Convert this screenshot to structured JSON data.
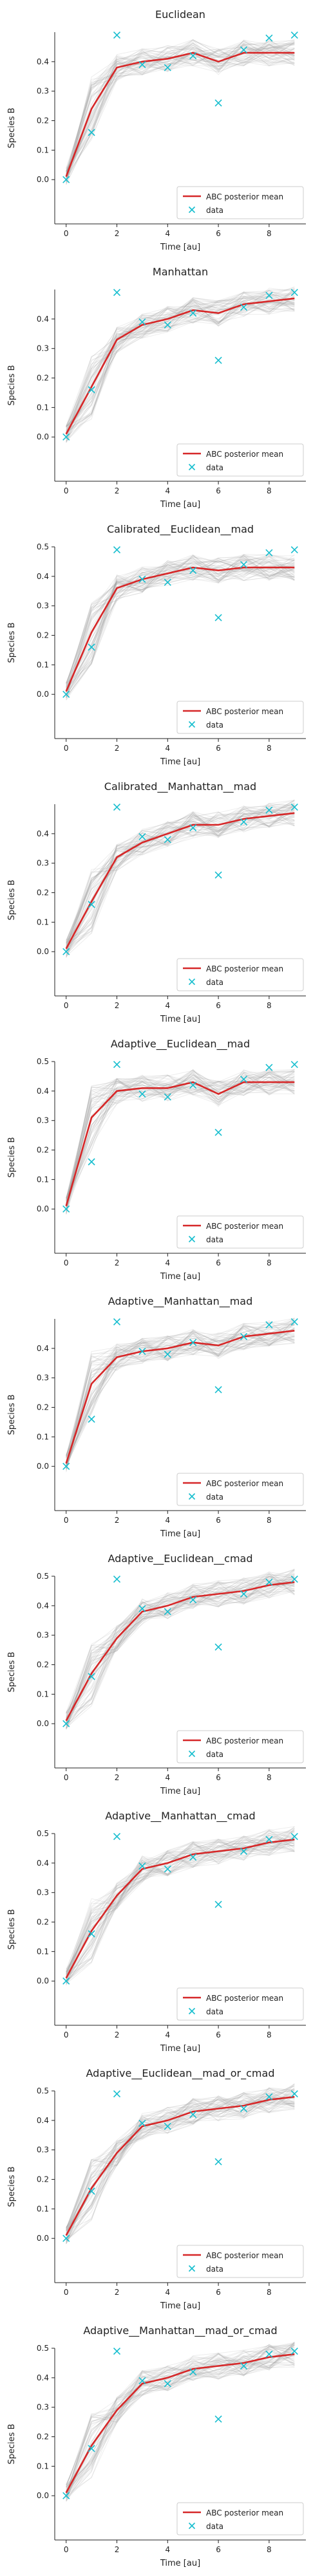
{
  "chart_data": [
    {
      "type": "line",
      "title": "Euclidean",
      "xlabel": "Time [au]",
      "ylabel": "Species B",
      "xlim": [
        0,
        9
      ],
      "ylim": [
        -0.15,
        0.5
      ],
      "xticks": [
        "0",
        "2",
        "4",
        "6",
        "8"
      ],
      "yticks": [
        "0.0",
        "0.1",
        "0.2",
        "0.3",
        "0.4"
      ],
      "legend": [
        "ABC posterior mean",
        "data"
      ],
      "legend_position": "bottom-right",
      "series": [
        {
          "name": "ABC posterior mean",
          "x": [
            0,
            1,
            2,
            3,
            4,
            5,
            6,
            7,
            8,
            9
          ],
          "values": [
            0.01,
            0.24,
            0.38,
            0.4,
            0.41,
            0.43,
            0.4,
            0.43,
            0.43,
            0.43
          ]
        },
        {
          "name": "data",
          "x": [
            0,
            1,
            2,
            3,
            4,
            5,
            6,
            7,
            8,
            9
          ],
          "values": [
            0.0,
            0.16,
            0.49,
            0.39,
            0.38,
            0.42,
            0.26,
            0.44,
            0.48,
            0.49
          ]
        }
      ]
    },
    {
      "type": "line",
      "title": "Manhattan",
      "xlabel": "Time [au]",
      "ylabel": "Species B",
      "xlim": [
        0,
        9
      ],
      "ylim": [
        -0.15,
        0.5
      ],
      "xticks": [
        "0",
        "2",
        "4",
        "6",
        "8"
      ],
      "yticks": [
        "0.0",
        "0.1",
        "0.2",
        "0.3",
        "0.4"
      ],
      "legend": [
        "ABC posterior mean",
        "data"
      ],
      "legend_position": "bottom-right",
      "series": [
        {
          "name": "ABC posterior mean",
          "x": [
            0,
            1,
            2,
            3,
            4,
            5,
            6,
            7,
            8,
            9
          ],
          "values": [
            0.01,
            0.17,
            0.33,
            0.38,
            0.4,
            0.43,
            0.42,
            0.45,
            0.46,
            0.47
          ]
        },
        {
          "name": "data",
          "x": [
            0,
            1,
            2,
            3,
            4,
            5,
            6,
            7,
            8,
            9
          ],
          "values": [
            0.0,
            0.16,
            0.49,
            0.39,
            0.38,
            0.42,
            0.26,
            0.44,
            0.48,
            0.49
          ]
        }
      ]
    },
    {
      "type": "line",
      "title": "Calibrated__Euclidean__mad",
      "xlabel": "Time [au]",
      "ylabel": "Species B",
      "xlim": [
        0,
        9
      ],
      "ylim": [
        -0.15,
        0.5
      ],
      "xticks": [
        "0",
        "2",
        "4",
        "6",
        "8"
      ],
      "yticks": [
        "0.0",
        "0.1",
        "0.2",
        "0.3",
        "0.4",
        "0.5"
      ],
      "legend": [
        "ABC posterior mean",
        "data"
      ],
      "legend_position": "bottom-right",
      "series": [
        {
          "name": "ABC posterior mean",
          "x": [
            0,
            1,
            2,
            3,
            4,
            5,
            6,
            7,
            8,
            9
          ],
          "values": [
            0.01,
            0.21,
            0.36,
            0.39,
            0.41,
            0.43,
            0.42,
            0.43,
            0.43,
            0.43
          ]
        },
        {
          "name": "data",
          "x": [
            0,
            1,
            2,
            3,
            4,
            5,
            6,
            7,
            8,
            9
          ],
          "values": [
            0.0,
            0.16,
            0.49,
            0.39,
            0.38,
            0.42,
            0.26,
            0.44,
            0.48,
            0.49
          ]
        }
      ]
    },
    {
      "type": "line",
      "title": "Calibrated__Manhattan__mad",
      "xlabel": "Time [au]",
      "ylabel": "Species B",
      "xlim": [
        0,
        9
      ],
      "ylim": [
        -0.15,
        0.5
      ],
      "xticks": [
        "0",
        "2",
        "4",
        "6",
        "8"
      ],
      "yticks": [
        "0.0",
        "0.1",
        "0.2",
        "0.3",
        "0.4"
      ],
      "legend": [
        "ABC posterior mean",
        "data"
      ],
      "legend_position": "bottom-right",
      "series": [
        {
          "name": "ABC posterior mean",
          "x": [
            0,
            1,
            2,
            3,
            4,
            5,
            6,
            7,
            8,
            9
          ],
          "values": [
            0.01,
            0.17,
            0.32,
            0.37,
            0.4,
            0.43,
            0.43,
            0.45,
            0.46,
            0.47
          ]
        },
        {
          "name": "data",
          "x": [
            0,
            1,
            2,
            3,
            4,
            5,
            6,
            7,
            8,
            9
          ],
          "values": [
            0.0,
            0.16,
            0.49,
            0.39,
            0.38,
            0.42,
            0.26,
            0.44,
            0.48,
            0.49
          ]
        }
      ]
    },
    {
      "type": "line",
      "title": "Adaptive__Euclidean__mad",
      "xlabel": "Time [au]",
      "ylabel": "Species B",
      "xlim": [
        0,
        9
      ],
      "ylim": [
        -0.15,
        0.5
      ],
      "xticks": [
        "0",
        "2",
        "4",
        "6",
        "8"
      ],
      "yticks": [
        "0.0",
        "0.1",
        "0.2",
        "0.3",
        "0.4",
        "0.5"
      ],
      "legend": [
        "ABC posterior mean",
        "data"
      ],
      "legend_position": "bottom-right",
      "series": [
        {
          "name": "ABC posterior mean",
          "x": [
            0,
            1,
            2,
            3,
            4,
            5,
            6,
            7,
            8,
            9
          ],
          "values": [
            0.01,
            0.31,
            0.4,
            0.41,
            0.41,
            0.43,
            0.39,
            0.43,
            0.43,
            0.43
          ]
        },
        {
          "name": "data",
          "x": [
            0,
            1,
            2,
            3,
            4,
            5,
            6,
            7,
            8,
            9
          ],
          "values": [
            0.0,
            0.16,
            0.49,
            0.39,
            0.38,
            0.42,
            0.26,
            0.44,
            0.48,
            0.49
          ]
        }
      ]
    },
    {
      "type": "line",
      "title": "Adaptive__Manhattan__mad",
      "xlabel": "Time [au]",
      "ylabel": "Species B",
      "xlim": [
        0,
        9
      ],
      "ylim": [
        -0.15,
        0.5
      ],
      "xticks": [
        "0",
        "2",
        "4",
        "6",
        "8"
      ],
      "yticks": [
        "0.0",
        "0.1",
        "0.2",
        "0.3",
        "0.4"
      ],
      "legend": [
        "ABC posterior mean",
        "data"
      ],
      "legend_position": "bottom-right",
      "series": [
        {
          "name": "ABC posterior mean",
          "x": [
            0,
            1,
            2,
            3,
            4,
            5,
            6,
            7,
            8,
            9
          ],
          "values": [
            0.01,
            0.28,
            0.37,
            0.39,
            0.4,
            0.42,
            0.41,
            0.44,
            0.45,
            0.46
          ]
        },
        {
          "name": "data",
          "x": [
            0,
            1,
            2,
            3,
            4,
            5,
            6,
            7,
            8,
            9
          ],
          "values": [
            0.0,
            0.16,
            0.49,
            0.39,
            0.38,
            0.42,
            0.26,
            0.44,
            0.48,
            0.49
          ]
        }
      ]
    },
    {
      "type": "line",
      "title": "Adaptive__Euclidean__cmad",
      "xlabel": "Time [au]",
      "ylabel": "Species B",
      "xlim": [
        0,
        9
      ],
      "ylim": [
        -0.15,
        0.5
      ],
      "xticks": [
        "0",
        "2",
        "4",
        "6",
        "8"
      ],
      "yticks": [
        "0.0",
        "0.1",
        "0.2",
        "0.3",
        "0.4",
        "0.5"
      ],
      "legend": [
        "ABC posterior mean",
        "data"
      ],
      "legend_position": "bottom-right",
      "series": [
        {
          "name": "ABC posterior mean",
          "x": [
            0,
            1,
            2,
            3,
            4,
            5,
            6,
            7,
            8,
            9
          ],
          "values": [
            0.01,
            0.17,
            0.29,
            0.38,
            0.4,
            0.43,
            0.44,
            0.45,
            0.47,
            0.48
          ]
        },
        {
          "name": "data",
          "x": [
            0,
            1,
            2,
            3,
            4,
            5,
            6,
            7,
            8,
            9
          ],
          "values": [
            0.0,
            0.16,
            0.49,
            0.39,
            0.38,
            0.42,
            0.26,
            0.44,
            0.48,
            0.49
          ]
        }
      ]
    },
    {
      "type": "line",
      "title": "Adaptive__Manhattan__cmad",
      "xlabel": "Time [au]",
      "ylabel": "Species B",
      "xlim": [
        0,
        9
      ],
      "ylim": [
        -0.15,
        0.5
      ],
      "xticks": [
        "0",
        "2",
        "4",
        "6",
        "8"
      ],
      "yticks": [
        "0.0",
        "0.1",
        "0.2",
        "0.3",
        "0.4",
        "0.5"
      ],
      "legend": [
        "ABC posterior mean",
        "data"
      ],
      "legend_position": "bottom-right",
      "series": [
        {
          "name": "ABC posterior mean",
          "x": [
            0,
            1,
            2,
            3,
            4,
            5,
            6,
            7,
            8,
            9
          ],
          "values": [
            0.01,
            0.17,
            0.29,
            0.38,
            0.4,
            0.43,
            0.44,
            0.45,
            0.47,
            0.48
          ]
        },
        {
          "name": "data",
          "x": [
            0,
            1,
            2,
            3,
            4,
            5,
            6,
            7,
            8,
            9
          ],
          "values": [
            0.0,
            0.16,
            0.49,
            0.39,
            0.38,
            0.42,
            0.26,
            0.44,
            0.48,
            0.49
          ]
        }
      ]
    },
    {
      "type": "line",
      "title": "Adaptive__Euclidean__mad_or_cmad",
      "xlabel": "Time [au]",
      "ylabel": "Species B",
      "xlim": [
        0,
        9
      ],
      "ylim": [
        -0.15,
        0.5
      ],
      "xticks": [
        "0",
        "2",
        "4",
        "6",
        "8"
      ],
      "yticks": [
        "0.0",
        "0.1",
        "0.2",
        "0.3",
        "0.4",
        "0.5"
      ],
      "legend": [
        "ABC posterior mean",
        "data"
      ],
      "legend_position": "bottom-right",
      "series": [
        {
          "name": "ABC posterior mean",
          "x": [
            0,
            1,
            2,
            3,
            4,
            5,
            6,
            7,
            8,
            9
          ],
          "values": [
            0.01,
            0.17,
            0.29,
            0.38,
            0.4,
            0.43,
            0.44,
            0.45,
            0.47,
            0.48
          ]
        },
        {
          "name": "data",
          "x": [
            0,
            1,
            2,
            3,
            4,
            5,
            6,
            7,
            8,
            9
          ],
          "values": [
            0.0,
            0.16,
            0.49,
            0.39,
            0.38,
            0.42,
            0.26,
            0.44,
            0.48,
            0.49
          ]
        }
      ]
    },
    {
      "type": "line",
      "title": "Adaptive__Manhattan__mad_or_cmad",
      "xlabel": "Time [au]",
      "ylabel": "Species B",
      "xlim": [
        0,
        9
      ],
      "ylim": [
        -0.15,
        0.5
      ],
      "xticks": [
        "0",
        "2",
        "4",
        "6",
        "8"
      ],
      "yticks": [
        "0.0",
        "0.1",
        "0.2",
        "0.3",
        "0.4",
        "0.5"
      ],
      "legend": [
        "ABC posterior mean",
        "data"
      ],
      "legend_position": "bottom-right",
      "series": [
        {
          "name": "ABC posterior mean",
          "x": [
            0,
            1,
            2,
            3,
            4,
            5,
            6,
            7,
            8,
            9
          ],
          "values": [
            0.01,
            0.17,
            0.29,
            0.38,
            0.4,
            0.43,
            0.44,
            0.45,
            0.47,
            0.48
          ]
        },
        {
          "name": "data",
          "x": [
            0,
            1,
            2,
            3,
            4,
            5,
            6,
            7,
            8,
            9
          ],
          "values": [
            0.0,
            0.16,
            0.49,
            0.39,
            0.38,
            0.42,
            0.26,
            0.44,
            0.48,
            0.49
          ]
        }
      ]
    }
  ],
  "colors": {
    "mean": "#d62728",
    "data": "#17becf",
    "samples": "#9a9a9a",
    "axis": "#222222"
  }
}
